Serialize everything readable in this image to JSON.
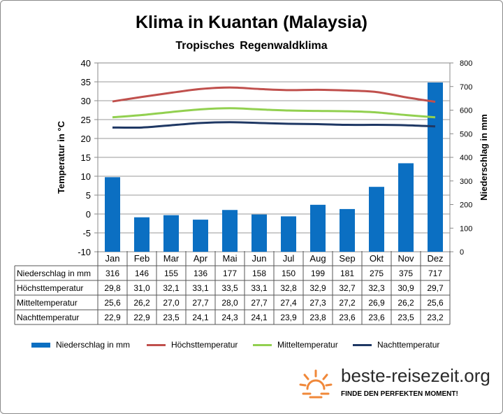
{
  "title": "Klima in Kuantan (Malaysia)",
  "subtitle": "Tropisches Regenwaldklima",
  "chart_data": {
    "type": "bar",
    "categories": [
      "Jan",
      "Feb",
      "Mar",
      "Apr",
      "Mai",
      "Jun",
      "Jul",
      "Aug",
      "Sep",
      "Okt",
      "Nov",
      "Dez"
    ],
    "ylabel_left": "Temperatur in °C",
    "ylabel_right": "Niederschlag in mm",
    "ylim_left": [
      -10,
      40
    ],
    "ylim_right": [
      0,
      800
    ],
    "yticks_left": [
      "40",
      "35",
      "30",
      "25",
      "20",
      "15",
      "10",
      "5",
      "0",
      "-5",
      "-10"
    ],
    "yticks_right": [
      "800",
      "700",
      "600",
      "500",
      "400",
      "300",
      "200",
      "100",
      "0"
    ],
    "grid": true,
    "legend_position": "bottom",
    "series": [
      {
        "name": "Niederschlag in mm",
        "kind": "bar",
        "axis": "right",
        "color": "#0b6fc2",
        "values": [
          316,
          146,
          155,
          136,
          177,
          158,
          150,
          199,
          181,
          275,
          375,
          717
        ],
        "labels": [
          "316",
          "146",
          "155",
          "136",
          "177",
          "158",
          "150",
          "199",
          "181",
          "275",
          "375",
          "717"
        ]
      },
      {
        "name": "Höchsttemperatur",
        "kind": "line",
        "axis": "left",
        "color": "#c0504d",
        "values": [
          29.8,
          31.0,
          32.1,
          33.1,
          33.5,
          33.1,
          32.8,
          32.9,
          32.7,
          32.3,
          30.9,
          29.7
        ],
        "labels": [
          "29,8",
          "31,0",
          "32,1",
          "33,1",
          "33,5",
          "33,1",
          "32,8",
          "32,9",
          "32,7",
          "32,3",
          "30,9",
          "29,7"
        ]
      },
      {
        "name": "Mitteltemperatur",
        "kind": "line",
        "axis": "left",
        "color": "#92d050",
        "values": [
          25.6,
          26.2,
          27.0,
          27.7,
          28.0,
          27.7,
          27.4,
          27.3,
          27.2,
          26.9,
          26.2,
          25.6
        ],
        "labels": [
          "25,6",
          "26,2",
          "27,0",
          "27,7",
          "28,0",
          "27,7",
          "27,4",
          "27,3",
          "27,2",
          "26,9",
          "26,2",
          "25,6"
        ]
      },
      {
        "name": "Nachttemperatur",
        "kind": "line",
        "axis": "left",
        "color": "#1f3864",
        "values": [
          22.9,
          22.9,
          23.5,
          24.1,
          24.3,
          24.1,
          23.9,
          23.8,
          23.6,
          23.6,
          23.5,
          23.2
        ],
        "labels": [
          "22,9",
          "22,9",
          "23,5",
          "24,1",
          "24,3",
          "24,1",
          "23,9",
          "23,8",
          "23,6",
          "23,6",
          "23,5",
          "23,2"
        ]
      }
    ]
  },
  "table_row_labels": [
    "Niederschlag in mm",
    "Höchsttemperatur",
    "Mitteltemperatur",
    "Nachttemperatur"
  ],
  "brand": {
    "name": "beste-reisezeit.org",
    "tagline": "FINDE DEN PERFEKTEN MOMENT!",
    "icon": "sun-icon",
    "icon_color": "#f0883a"
  }
}
